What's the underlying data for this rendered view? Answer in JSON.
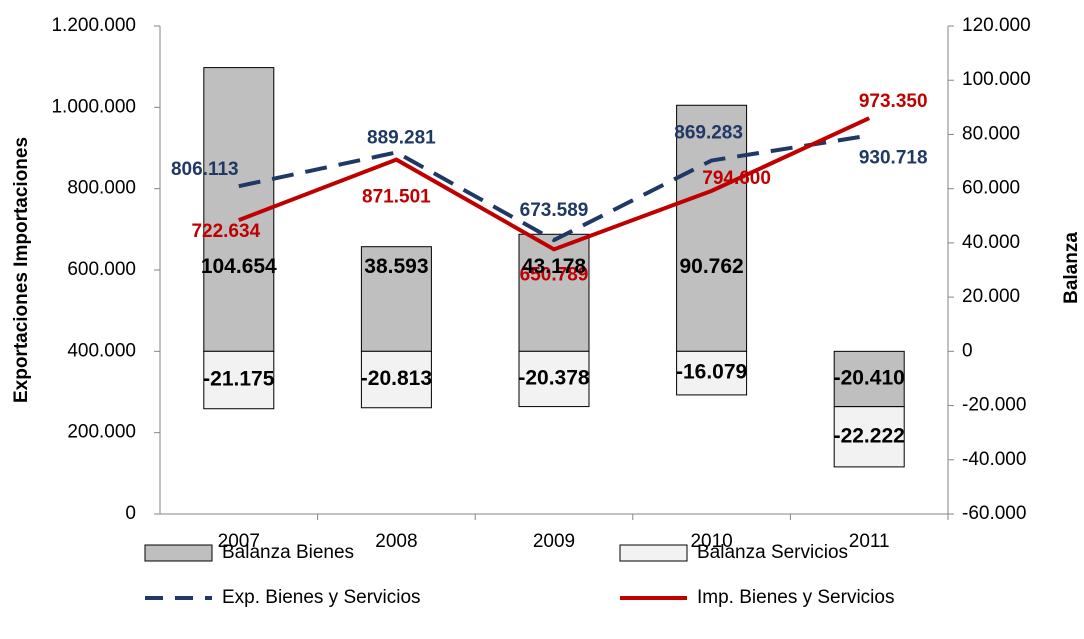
{
  "chart_data": {
    "type": "bar",
    "y_label": "Exportaciones Importaciones",
    "y2_label": "Balanza",
    "categories": [
      "2007",
      "2008",
      "2009",
      "2010",
      "2011"
    ],
    "ylim": [
      0,
      1200000
    ],
    "yticks": [
      0,
      {
        "value": 200000,
        "label": "200.000"
      },
      {
        "value": 400000,
        "label": "400.000"
      },
      {
        "value": 600000,
        "label": "600.000"
      },
      {
        "value": 800000,
        "label": "800.000"
      },
      {
        "value": 1000000,
        "label": "1.000.000"
      },
      {
        "value": 1200000,
        "label": "1.200.000"
      }
    ],
    "y2lim": [
      -60000,
      120000
    ],
    "y2ticks": [
      {
        "value": -60000,
        "label": "-60.000"
      },
      {
        "value": -40000,
        "label": "-40.000"
      },
      {
        "value": -20000,
        "label": "-20.000"
      },
      0,
      {
        "value": 20000,
        "label": "20.000"
      },
      {
        "value": 40000,
        "label": "40.000"
      },
      {
        "value": 60000,
        "label": "60.000"
      },
      {
        "value": 80000,
        "label": "80.000"
      },
      {
        "value": 100000,
        "label": "100.000"
      },
      {
        "value": 120000,
        "label": "120.000"
      }
    ],
    "stacked": true,
    "legend": "bottom",
    "series": [
      {
        "name": "Balanza Bienes",
        "type": "bar",
        "axis": "y2",
        "color": "#bfbfbf",
        "values": [
          104654,
          38593,
          43178,
          90762,
          -20410
        ],
        "value_labels": [
          "104.654",
          "38.593",
          "43.178",
          "90.762",
          "-20.410"
        ]
      },
      {
        "name": "Balanza Servicios",
        "type": "bar",
        "axis": "y2",
        "color": "#f2f2f2",
        "values": [
          -21175,
          -20813,
          -20378,
          -16079,
          -22222
        ],
        "value_labels": [
          "-21.175",
          "-20.813",
          "-20.378",
          "-16.079",
          "-22.222"
        ]
      },
      {
        "name": "Exp. Bienes y Servicios",
        "type": "line",
        "line_style": "dashed",
        "color": "#1f3864",
        "values": [
          806113,
          889281,
          673589,
          869283,
          930718
        ],
        "value_labels": [
          "806.113",
          "889.281",
          "673.589",
          "869.283",
          "930.718"
        ]
      },
      {
        "name": "Imp. Bienes y Servicios",
        "type": "line",
        "line_style": "solid",
        "color": "#c00000",
        "values": [
          722634,
          871501,
          650789,
          794600,
          973350
        ],
        "value_labels": [
          "722.634",
          "871.501",
          "650.789",
          "794.600",
          "973.350"
        ]
      }
    ]
  }
}
